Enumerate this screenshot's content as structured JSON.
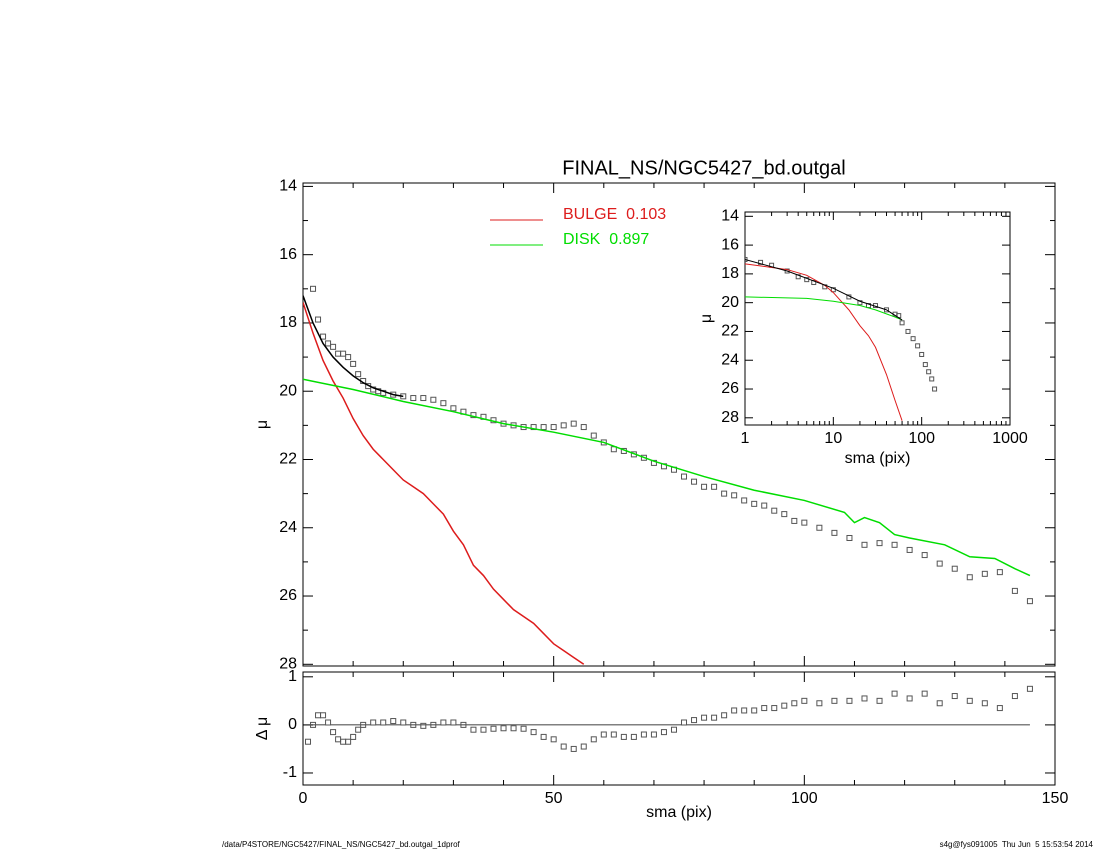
{
  "chart_data": [
    {
      "type": "line",
      "title": "FINAL_NS/NGC5427_bd.outgal",
      "ylabel": "μ",
      "xlim": [
        0,
        150
      ],
      "ylim": [
        28.05,
        13.9
      ],
      "xticks": [
        0,
        50,
        100,
        150
      ],
      "xtick_labels": false,
      "xminorticks": [
        10,
        20,
        30,
        40,
        60,
        70,
        80,
        90,
        110,
        120,
        130,
        140
      ],
      "yticks": [
        14,
        16,
        18,
        20,
        22,
        24,
        26,
        28
      ],
      "yminorticks": [
        15,
        17,
        19,
        21,
        23,
        25,
        27
      ],
      "legend": true,
      "series": [
        {
          "style": "markers",
          "color": "#555555",
          "x": [
            2,
            3,
            4,
            5,
            6,
            7,
            8,
            9,
            10,
            11,
            12,
            13,
            14,
            15,
            16,
            18,
            20,
            22,
            24,
            26,
            28,
            30,
            32,
            34,
            36,
            38,
            40,
            42,
            44,
            46,
            48,
            50,
            52,
            54,
            56,
            58,
            60,
            62,
            64,
            66,
            68,
            70,
            72,
            74,
            76,
            78,
            80,
            82,
            84,
            86,
            88,
            90,
            92,
            94,
            96,
            98,
            100,
            103,
            106,
            109,
            112,
            115,
            118,
            121,
            124,
            127,
            130,
            133,
            136,
            139,
            142,
            145
          ],
          "values": [
            17.0,
            17.9,
            18.4,
            18.6,
            18.7,
            18.9,
            18.9,
            19.0,
            19.2,
            19.5,
            19.7,
            19.85,
            19.95,
            20.0,
            20.05,
            20.1,
            20.15,
            20.2,
            20.2,
            20.25,
            20.35,
            20.5,
            20.6,
            20.7,
            20.75,
            20.85,
            20.95,
            21.0,
            21.05,
            21.05,
            21.05,
            21.05,
            21.0,
            20.95,
            21.05,
            21.3,
            21.5,
            21.7,
            21.75,
            21.85,
            21.95,
            22.1,
            22.2,
            22.3,
            22.5,
            22.65,
            22.8,
            22.8,
            23.0,
            23.05,
            23.2,
            23.3,
            23.35,
            23.5,
            23.6,
            23.8,
            23.85,
            24.0,
            24.15,
            24.3,
            24.5,
            24.45,
            24.5,
            24.65,
            24.8,
            25.05,
            25.2,
            25.45,
            25.35,
            25.3,
            25.85,
            26.15
          ]
        },
        {
          "name": "BULGE  0.103",
          "style": "line",
          "color": "#dd1c1c",
          "x": [
            0,
            2,
            4,
            6,
            8,
            10,
            12,
            14,
            16,
            18,
            20,
            22,
            24,
            26,
            28,
            30,
            32,
            34,
            36,
            38,
            40,
            42,
            44,
            46,
            48,
            50,
            52,
            54,
            56
          ],
          "values": [
            17.4,
            18.3,
            19.1,
            19.7,
            20.2,
            20.8,
            21.3,
            21.7,
            22.0,
            22.3,
            22.6,
            22.8,
            23.0,
            23.3,
            23.6,
            24.1,
            24.5,
            25.1,
            25.4,
            25.8,
            26.1,
            26.4,
            26.6,
            26.8,
            27.1,
            27.4,
            27.6,
            27.8,
            28.0
          ]
        },
        {
          "name": "DISK  0.897",
          "style": "line",
          "color": "#00dd00",
          "x": [
            0,
            10,
            20,
            30,
            40,
            50,
            60,
            70,
            80,
            90,
            100,
            108,
            110,
            112,
            115,
            118,
            121,
            128,
            133,
            138,
            142,
            145
          ],
          "values": [
            19.65,
            19.95,
            20.3,
            20.6,
            20.95,
            21.2,
            21.5,
            22.05,
            22.5,
            22.9,
            23.2,
            23.55,
            23.85,
            23.7,
            23.85,
            24.2,
            24.3,
            24.5,
            24.85,
            24.9,
            25.2,
            25.4
          ]
        },
        {
          "style": "line",
          "color": "#000000",
          "x": [
            0,
            2,
            4,
            6,
            8,
            10,
            12,
            14,
            16,
            18,
            20
          ],
          "values": [
            17.2,
            18.0,
            18.6,
            19.0,
            19.3,
            19.55,
            19.75,
            19.9,
            20.0,
            20.1,
            20.15
          ]
        }
      ]
    },
    {
      "type": "line",
      "xlabel": "sma (pix)",
      "ylabel": "Δ μ",
      "xlim": [
        0,
        150
      ],
      "ylim": [
        -1.25,
        1.1
      ],
      "xticks": [
        0,
        50,
        100,
        150
      ],
      "xminorticks": [
        10,
        20,
        30,
        40,
        60,
        70,
        80,
        90,
        110,
        120,
        130,
        140
      ],
      "yticks": [
        -1,
        0,
        1
      ],
      "zero_line": true,
      "series": [
        {
          "style": "markers",
          "color": "#555555",
          "x": [
            1,
            2,
            3,
            4,
            5,
            6,
            7,
            8,
            9,
            10,
            11,
            12,
            14,
            16,
            18,
            20,
            22,
            24,
            26,
            28,
            30,
            32,
            34,
            36,
            38,
            40,
            42,
            44,
            46,
            48,
            50,
            52,
            54,
            56,
            58,
            60,
            62,
            64,
            66,
            68,
            70,
            72,
            74,
            76,
            78,
            80,
            82,
            84,
            86,
            88,
            90,
            92,
            94,
            96,
            98,
            100,
            103,
            106,
            109,
            112,
            115,
            118,
            121,
            124,
            127,
            130,
            133,
            136,
            139,
            142,
            145
          ],
          "values": [
            -0.35,
            0.0,
            0.2,
            0.2,
            0.05,
            -0.15,
            -0.3,
            -0.35,
            -0.35,
            -0.25,
            -0.1,
            0.0,
            0.05,
            0.05,
            0.08,
            0.05,
            0.0,
            -0.02,
            0.0,
            0.05,
            0.05,
            0.0,
            -0.1,
            -0.1,
            -0.08,
            -0.07,
            -0.07,
            -0.08,
            -0.15,
            -0.25,
            -0.3,
            -0.45,
            -0.5,
            -0.45,
            -0.3,
            -0.2,
            -0.2,
            -0.25,
            -0.25,
            -0.2,
            -0.2,
            -0.15,
            -0.1,
            0.05,
            0.1,
            0.15,
            0.15,
            0.2,
            0.3,
            0.3,
            0.3,
            0.35,
            0.35,
            0.4,
            0.45,
            0.5,
            0.45,
            0.5,
            0.5,
            0.55,
            0.5,
            0.65,
            0.55,
            0.65,
            0.45,
            0.6,
            0.5,
            0.45,
            0.35,
            0.6,
            0.75
          ]
        }
      ]
    },
    {
      "type": "line",
      "xlabel": "sma (pix)",
      "ylabel": "μ",
      "xlog": true,
      "xlim": [
        1,
        1000
      ],
      "ylim": [
        28.5,
        13.7
      ],
      "xticks": [
        1,
        10,
        100,
        1000
      ],
      "yticks": [
        14,
        16,
        18,
        20,
        22,
        24,
        26,
        28
      ],
      "series": [
        {
          "style": "markers",
          "color": "#555555",
          "x": [
            1,
            1.5,
            2,
            3,
            4,
            5,
            6,
            8,
            10,
            15,
            20,
            25,
            30,
            40,
            50,
            55,
            60,
            70,
            80,
            90,
            100,
            110,
            120,
            130,
            140
          ],
          "values": [
            17.0,
            17.2,
            17.4,
            17.8,
            18.2,
            18.4,
            18.6,
            18.9,
            19.1,
            19.6,
            20.0,
            20.2,
            20.2,
            20.5,
            20.8,
            20.9,
            21.4,
            22.0,
            22.5,
            23.0,
            23.6,
            24.3,
            24.8,
            25.3,
            26.0
          ]
        },
        {
          "style": "line",
          "color": "#dd1c1c",
          "x": [
            1,
            3,
            5,
            8,
            10,
            15,
            20,
            25,
            30,
            40,
            50,
            60
          ],
          "values": [
            17.3,
            17.7,
            18.1,
            18.8,
            19.3,
            20.5,
            21.6,
            22.3,
            23.1,
            25.0,
            26.8,
            28.2
          ]
        },
        {
          "style": "line",
          "color": "#00dd00",
          "x": [
            1,
            5,
            10,
            20,
            30,
            50,
            60
          ],
          "values": [
            19.6,
            19.7,
            19.9,
            20.2,
            20.5,
            21.0,
            21.2
          ]
        },
        {
          "style": "line",
          "color": "#000000",
          "x": [
            1,
            3,
            10,
            20,
            40,
            60
          ],
          "values": [
            17.0,
            17.8,
            19.0,
            19.9,
            20.5,
            21.2
          ]
        }
      ]
    }
  ],
  "footer": {
    "left": "/data/P4STORE/NGC5427/FINAL_NS/NGC5427_bd.outgal_1dprof",
    "right": "s4g@fys091005  Thu Jun  5 15:53:54 2014"
  }
}
